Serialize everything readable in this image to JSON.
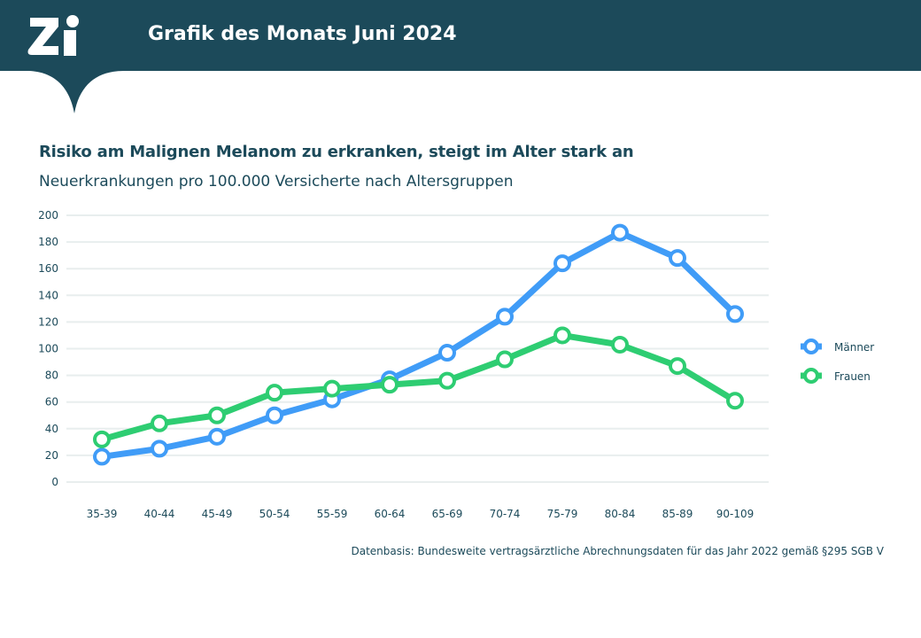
{
  "header": {
    "logo_text": "Zi",
    "title": "Grafik des Monats Juni 2024"
  },
  "colors": {
    "header": "#1c4a5a",
    "men": "#409cf7",
    "women": "#2ecd72",
    "grid": "#e8eeee"
  },
  "chart_data": {
    "type": "line",
    "title": "Risiko am Malignen Melanom zu erkranken, steigt im Alter stark an",
    "subtitle": "Neuerkrankungen pro 100.000 Versicherte nach Altersgruppen",
    "categories": [
      "35-39",
      "40-44",
      "45-49",
      "50-54",
      "55-59",
      "60-64",
      "65-69",
      "70-74",
      "75-79",
      "80-84",
      "85-89",
      "90-109"
    ],
    "series": [
      {
        "name": "Männer",
        "values": [
          19,
          25,
          34,
          50,
          62,
          77,
          97,
          124,
          164,
          187,
          168,
          126
        ]
      },
      {
        "name": "Frauen",
        "values": [
          32,
          44,
          50,
          67,
          70,
          73,
          76,
          92,
          110,
          103,
          87,
          61
        ]
      }
    ],
    "ylim": [
      0,
      200
    ],
    "yticks": [
      0,
      20,
      40,
      60,
      80,
      100,
      120,
      140,
      160,
      180,
      200
    ],
    "grid": true,
    "legend_position": "right",
    "source": "Datenbasis: Bundesweite vertragsärztliche Abrechnungsdaten für das Jahr 2022 gemäß §295 SGB V"
  }
}
